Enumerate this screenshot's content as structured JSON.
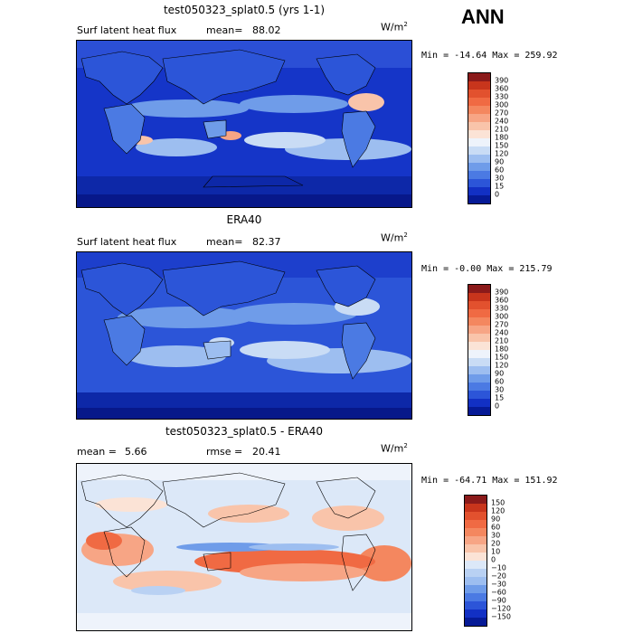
{
  "season": "ANN",
  "panels": [
    {
      "title": "test050323_splat0.5 (yrs 1-1)",
      "left_label": "Surf latent heat flux",
      "stat1_label": "mean=",
      "stat1_value": "88.02",
      "units_base": "W/m",
      "units_exp": "2",
      "minmax": "Min = -14.64  Max = 259.92",
      "colorbar": {
        "levels": [
          "390",
          "360",
          "330",
          "300",
          "270",
          "240",
          "210",
          "180",
          "150",
          "120",
          "90",
          "60",
          "30",
          "15",
          "0"
        ],
        "colors": [
          "#8b1a1a",
          "#c8351c",
          "#e2512e",
          "#f06a43",
          "#f4875f",
          "#f7a585",
          "#f9c4aa",
          "#fbe3d6",
          "#eef3fb",
          "#c9dcf5",
          "#9dbef0",
          "#6f9ce9",
          "#4b7ae3",
          "#2c55d8",
          "#1230c4",
          "#061a96"
        ]
      }
    },
    {
      "title": "ERA40",
      "left_label": "Surf latent heat flux",
      "stat1_label": "mean=",
      "stat1_value": "82.37",
      "units_base": "W/m",
      "units_exp": "2",
      "minmax": "Min =  -0.00  Max = 215.79",
      "colorbar": {
        "levels": [
          "390",
          "360",
          "330",
          "300",
          "270",
          "240",
          "210",
          "180",
          "150",
          "120",
          "90",
          "60",
          "30",
          "15",
          "0"
        ],
        "colors": [
          "#8b1a1a",
          "#c8351c",
          "#e2512e",
          "#f06a43",
          "#f4875f",
          "#f7a585",
          "#f9c4aa",
          "#fbe3d6",
          "#eef3fb",
          "#c9dcf5",
          "#9dbef0",
          "#6f9ce9",
          "#4b7ae3",
          "#2c55d8",
          "#1230c4",
          "#061a96"
        ]
      }
    },
    {
      "title": "test050323_splat0.5 - ERA40",
      "left_label": "mean =",
      "left_value": "5.66",
      "stat1_label": "rmse =",
      "stat1_value": "20.41",
      "units_base": "W/m",
      "units_exp": "2",
      "minmax": "Min = -64.71  Max = 151.92",
      "colorbar": {
        "levels": [
          "150",
          "120",
          "90",
          "60",
          "30",
          "20",
          "10",
          "0",
          "−10",
          "−20",
          "−30",
          "−60",
          "−90",
          "−120",
          "−150"
        ],
        "colors": [
          "#8b1a1a",
          "#c8351c",
          "#e2512e",
          "#f06a43",
          "#f4875f",
          "#f7a585",
          "#f9c4aa",
          "#fbe3d6",
          "#dce8f8",
          "#b9d1f3",
          "#9dbef0",
          "#6f9ce9",
          "#4b7ae3",
          "#2c55d8",
          "#1230c4",
          "#061a96"
        ]
      }
    }
  ]
}
